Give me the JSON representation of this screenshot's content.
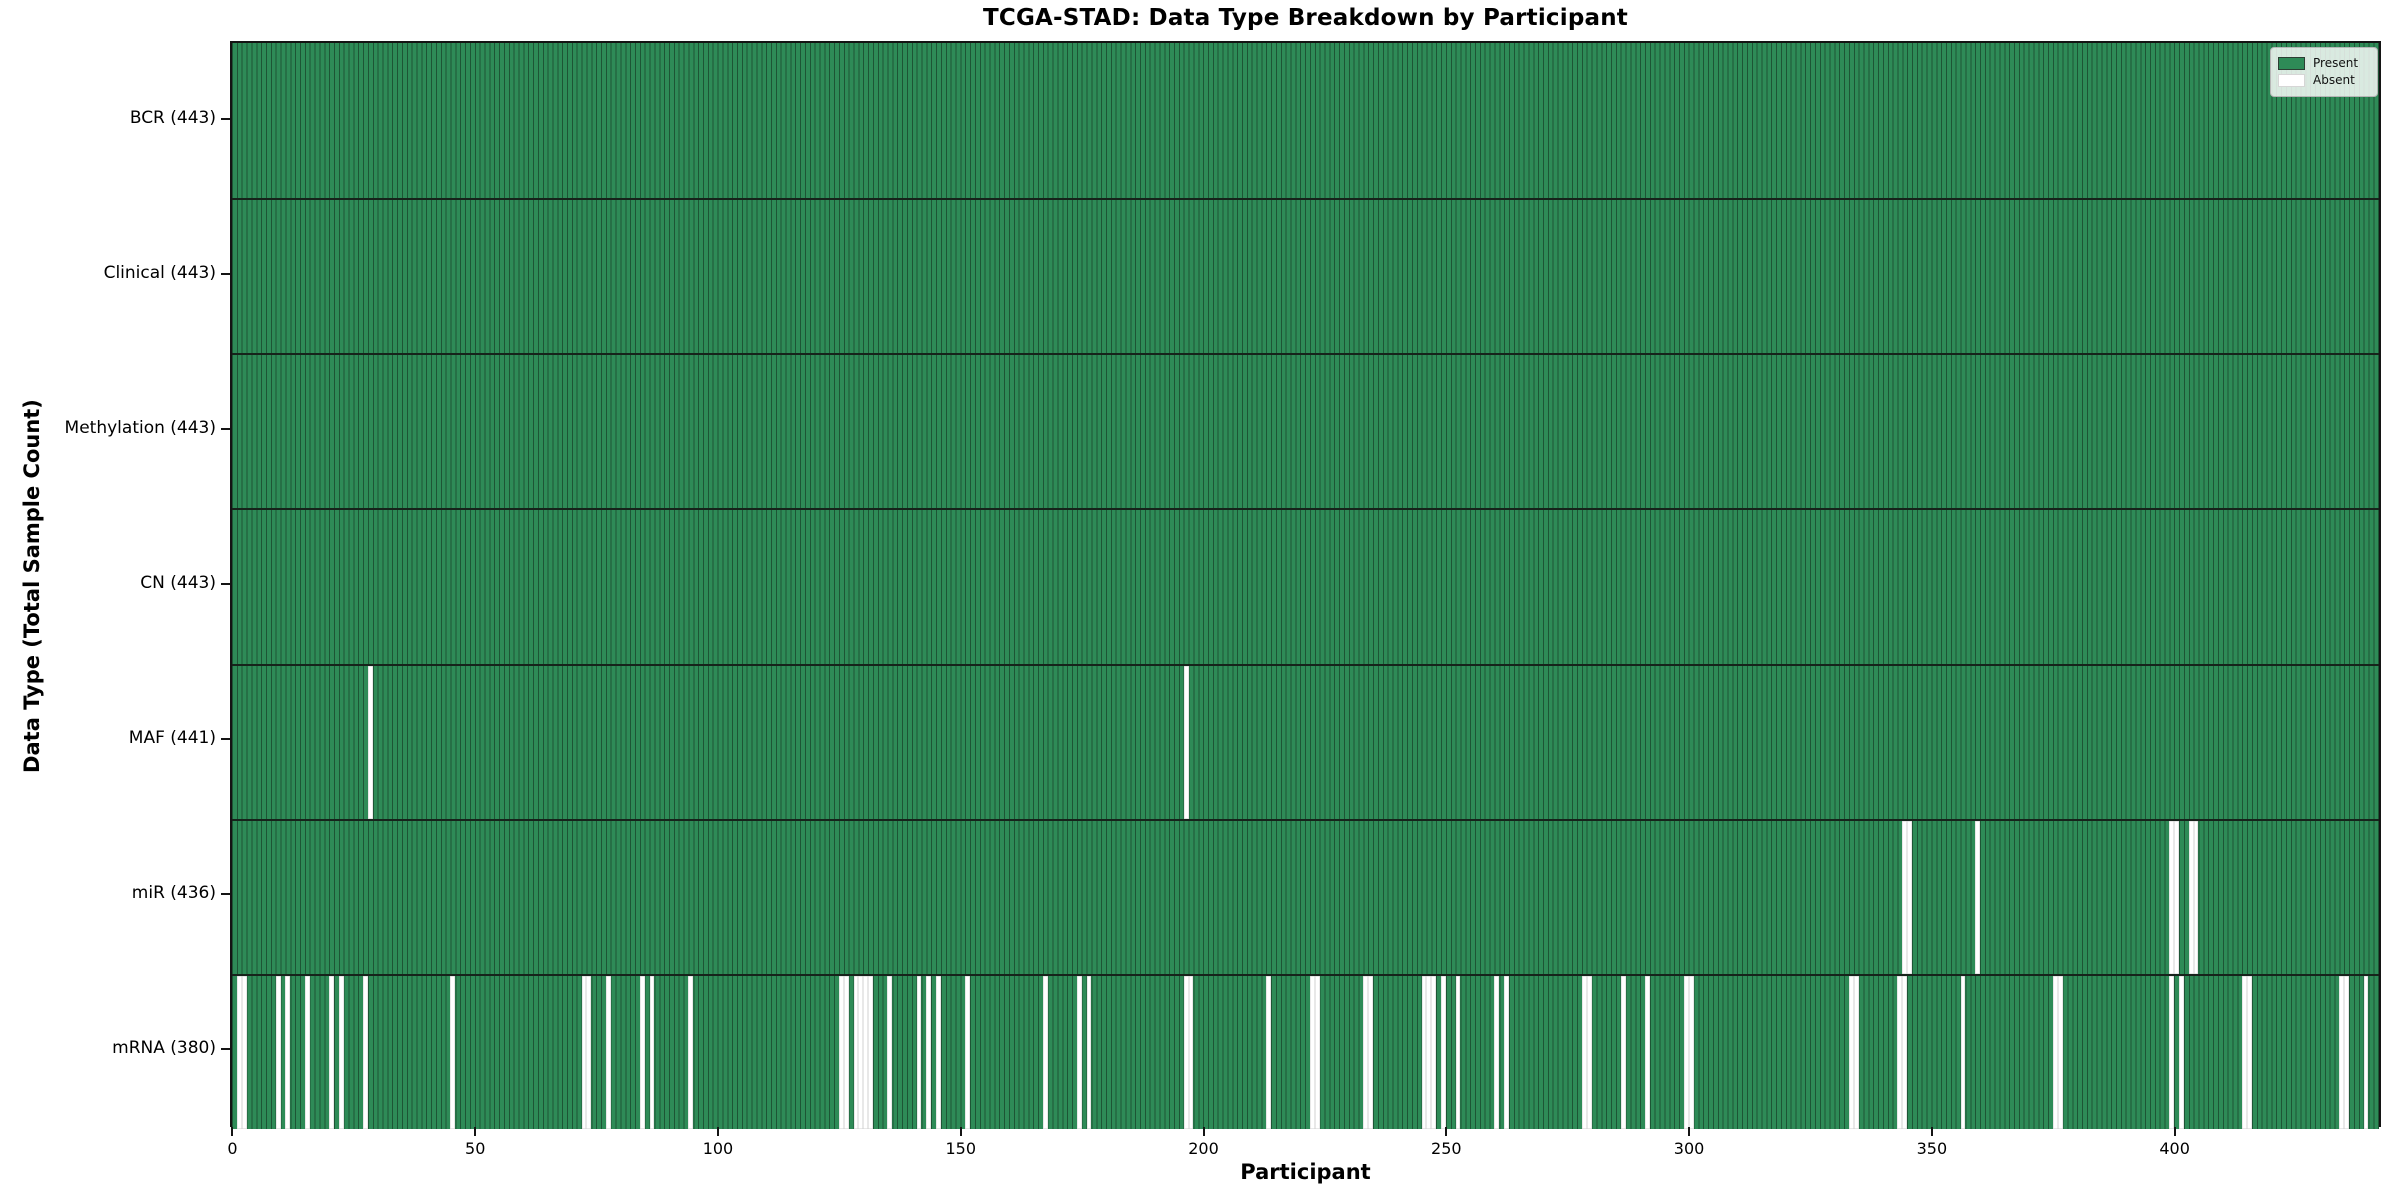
{
  "chart_data": {
    "type": "heatmap",
    "title": "TCGA-STAD: Data Type Breakdown by Participant",
    "x_axis": {
      "label": "Participant",
      "ticks": [
        0,
        50,
        100,
        150,
        200,
        250,
        300,
        350,
        400
      ],
      "n_participants": 443
    },
    "y_axis": {
      "label": "Data Type (Total Sample Count)"
    },
    "legend": {
      "position": "upper right",
      "items": [
        {
          "label": "Present",
          "color": "#2e8b57"
        },
        {
          "label": "Absent",
          "color": "#ffffff"
        }
      ]
    },
    "colors": {
      "present": "#2e8b57",
      "absent": "#ffffff",
      "bar_edge": "#1d5535"
    },
    "rows": [
      {
        "label": "BCR (443)",
        "data_type": "BCR",
        "total": 443,
        "absent_participants": []
      },
      {
        "label": "Clinical (443)",
        "data_type": "Clinical",
        "total": 443,
        "absent_participants": []
      },
      {
        "label": "Methylation (443)",
        "data_type": "Methylation",
        "total": 443,
        "absent_participants": []
      },
      {
        "label": "CN (443)",
        "data_type": "CN",
        "total": 443,
        "absent_participants": []
      },
      {
        "label": "MAF (441)",
        "data_type": "MAF",
        "total": 441,
        "absent_participants": [
          28,
          196
        ]
      },
      {
        "label": "miR (436)",
        "data_type": "miR",
        "total": 436,
        "absent_participants": [
          344,
          345,
          359,
          399,
          400,
          403,
          404
        ]
      },
      {
        "label": "mRNA (380)",
        "data_type": "mRNA",
        "total": 380,
        "absent_participants": [
          1,
          2,
          9,
          11,
          15,
          20,
          22,
          27,
          45,
          72,
          73,
          77,
          84,
          86,
          94,
          125,
          126,
          128,
          129,
          130,
          131,
          135,
          141,
          143,
          145,
          151,
          167,
          174,
          176,
          196,
          197,
          213,
          222,
          223,
          233,
          234,
          245,
          246,
          247,
          249,
          252,
          260,
          262,
          278,
          279,
          286,
          291,
          299,
          300,
          333,
          334,
          343,
          344,
          356,
          375,
          376,
          399,
          401,
          414,
          415,
          434,
          435,
          439
        ]
      }
    ]
  }
}
